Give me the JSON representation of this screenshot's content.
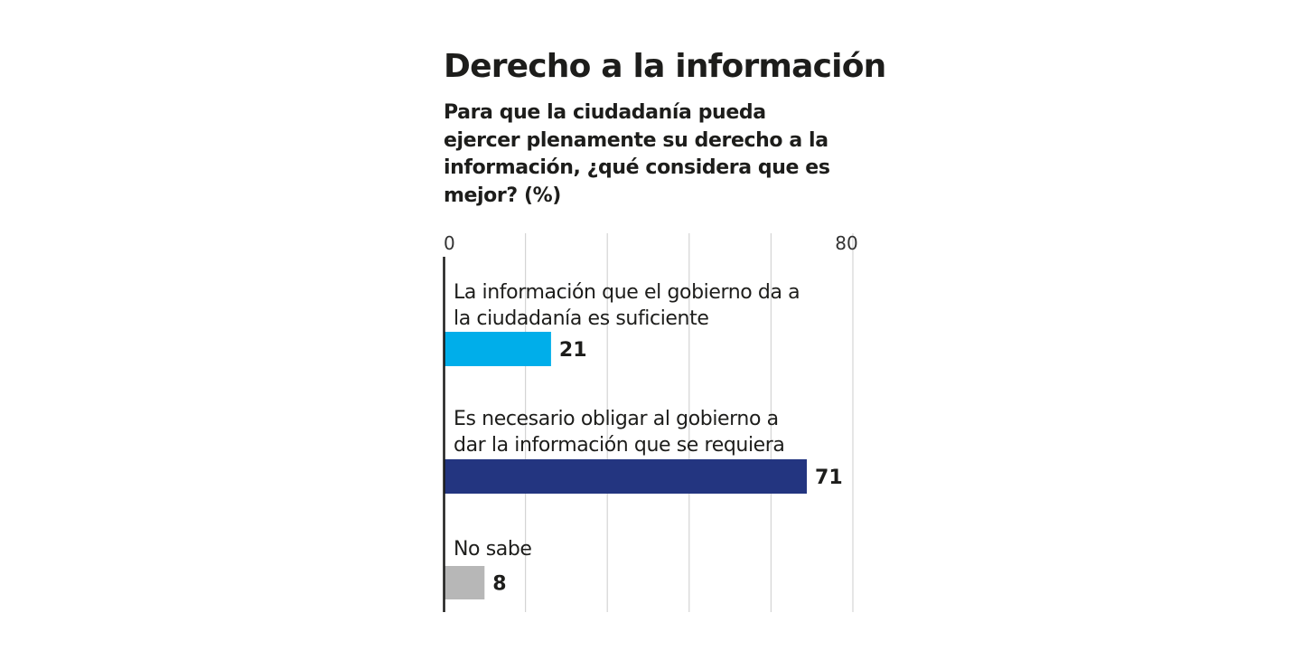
{
  "chart_data": {
    "type": "bar",
    "orientation": "horizontal",
    "title": "Derecho a la información",
    "subtitle": "Para que la ciudadanía pueda ejercer plenamente su derecho a la información, ¿qué considera que es mejor? (%)",
    "xlim": [
      0,
      80
    ],
    "x_tick_labels": [
      "0",
      "80"
    ],
    "grid": true,
    "categories": [
      "La información que el gobierno da a la ciudadanía es suficiente",
      "Es necesario obligar al gobierno a dar la información que se requiera",
      "No sabe"
    ],
    "category_label_lines": [
      [
        "La información que el gobierno da a",
        "la ciudadanía es suficiente"
      ],
      [
        "Es necesario obligar al gobierno a",
        "dar la información que se requiera"
      ],
      [
        "No sabe"
      ]
    ],
    "values": [
      21,
      71,
      8
    ],
    "value_labels": [
      "21",
      "71",
      "8"
    ],
    "colors": [
      "#00aeea",
      "#233580",
      "#b7b7b7"
    ]
  }
}
